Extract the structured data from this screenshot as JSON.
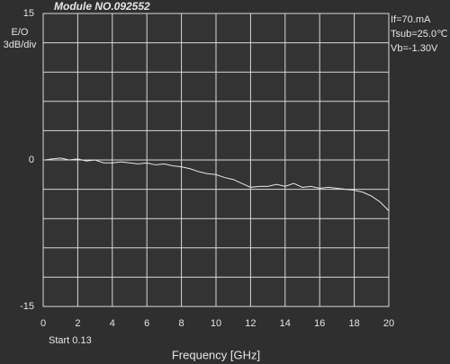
{
  "chart_data": {
    "type": "line",
    "title": "Module NO.092552",
    "ylabel": "E/O",
    "yscale_label": "3dB/div",
    "xlabel": "Frequency [GHz]",
    "start_note": "Start  0.13",
    "annotations": [
      "If=70.mA",
      "Tsub=25.0℃",
      "Vb=-1.30V"
    ],
    "xlim": [
      0,
      20
    ],
    "ylim": [
      -15,
      15
    ],
    "xticks": [
      0,
      2,
      4,
      6,
      8,
      10,
      12,
      14,
      16,
      18,
      20
    ],
    "yticks": [
      15,
      0,
      -15
    ],
    "ygrid": [
      15,
      12,
      9,
      6,
      3,
      0,
      -3,
      -6,
      -9,
      -12,
      -15
    ],
    "grid": true,
    "series": [
      {
        "color": "#e8e8e8",
        "x": [
          0.13,
          0.5,
          1,
          1.5,
          2,
          2.5,
          3,
          3.5,
          4,
          4.5,
          5,
          5.5,
          6,
          6.5,
          7,
          7.5,
          8,
          8.5,
          9,
          9.5,
          10,
          10.5,
          11,
          11.5,
          12,
          12.5,
          13,
          13.5,
          14,
          14.5,
          15,
          15.5,
          16,
          16.5,
          17,
          17.5,
          18,
          18.5,
          19,
          19.5,
          20
        ],
        "values": [
          0.0,
          0.1,
          0.2,
          0.0,
          0.1,
          -0.1,
          0.0,
          -0.3,
          -0.3,
          -0.2,
          -0.3,
          -0.4,
          -0.3,
          -0.5,
          -0.4,
          -0.6,
          -0.7,
          -0.9,
          -1.2,
          -1.4,
          -1.5,
          -1.8,
          -2.0,
          -2.4,
          -2.8,
          -2.7,
          -2.7,
          -2.5,
          -2.7,
          -2.4,
          -2.8,
          -2.7,
          -2.9,
          -2.8,
          -2.9,
          -3.0,
          -3.1,
          -3.3,
          -3.7,
          -4.3,
          -5.2
        ]
      }
    ]
  }
}
